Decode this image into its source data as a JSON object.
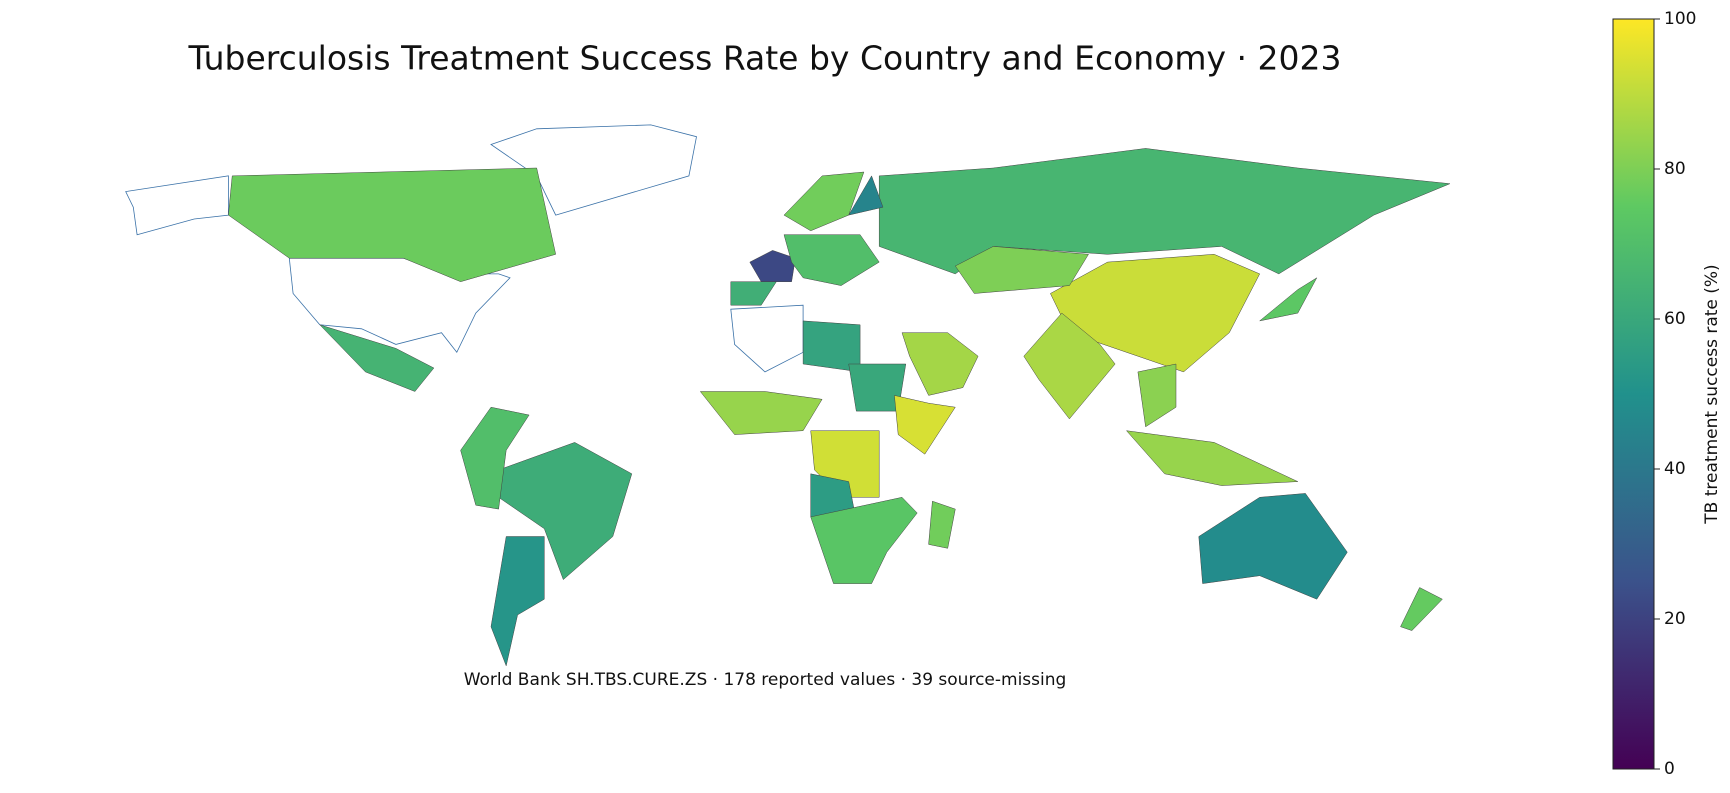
{
  "chart_data": {
    "type": "choropleth",
    "title": "Tuberculosis Treatment Success Rate by Country and Economy · 2023",
    "caption": "World Bank SH.TBS.CURE.ZS · 178 reported values · 39 source-missing",
    "colorbar_label": "TB treatment success rate (%)",
    "colormap": "viridis",
    "ylim": [
      0,
      100
    ],
    "yticks": [
      0,
      20,
      40,
      60,
      80,
      100
    ],
    "values": [
      77,
      65,
      62,
      52,
      70,
      66,
      92,
      87,
      80,
      86,
      22,
      70,
      78,
      45,
      63,
      58,
      60,
      84,
      94,
      93,
      55,
      73,
      78,
      48,
      84,
      82,
      76,
      74
    ]
  }
}
